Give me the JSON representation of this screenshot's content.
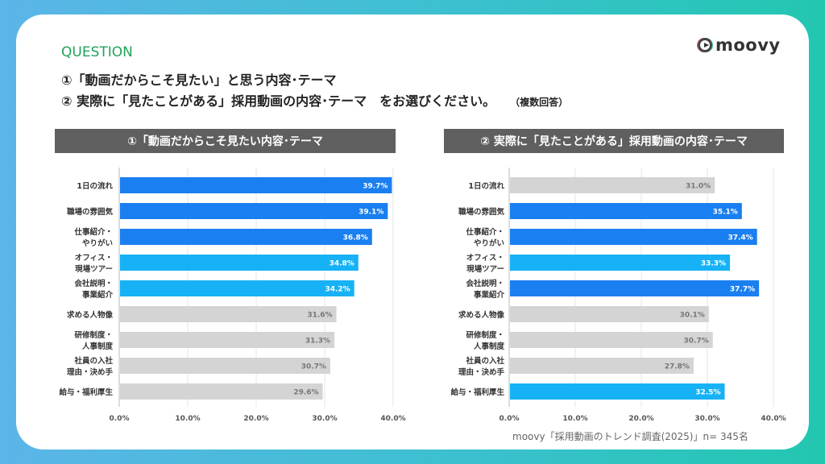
{
  "header": {
    "question_label": "QUESTION",
    "line1": "①「動画だからこそ見たい」と思う内容･テーマ",
    "line2": "② 実際に「見たことがある」採用動画の内容･テーマ　をお選びください。",
    "note": "（複数回答）",
    "logo": "moovy"
  },
  "colors": {
    "dark_blue": "#1a7ff0",
    "light_blue": "#16b2f5",
    "gray": "#d4d4d4"
  },
  "source": "moovy「採用動画のトレンド調査(2025)」n= 345名",
  "chart_data": [
    {
      "type": "bar",
      "orientation": "horizontal",
      "title": "①「動画だからこそ見たい内容･テーマ",
      "categories": [
        [
          "1日の流れ"
        ],
        [
          "職場の雰囲気"
        ],
        [
          "仕事紹介・",
          "やりがい"
        ],
        [
          "オフィス・",
          "現場ツアー"
        ],
        [
          "会社説明・",
          "事業紹介"
        ],
        [
          "求める人物像"
        ],
        [
          "研修制度・",
          "人事制度"
        ],
        [
          "社員の入社",
          "理由・決め手"
        ],
        [
          "給与・福利厚生"
        ]
      ],
      "values": [
        39.7,
        39.1,
        36.8,
        34.8,
        34.2,
        31.6,
        31.3,
        30.7,
        29.6
      ],
      "bar_colors": [
        "dark_blue",
        "dark_blue",
        "dark_blue",
        "light_blue",
        "light_blue",
        "gray",
        "gray",
        "gray",
        "gray"
      ],
      "xlim": [
        0,
        40
      ],
      "ticks": [
        "0.0%",
        "10.0%",
        "20.0%",
        "30.0%",
        "40.0%"
      ],
      "grid": true
    },
    {
      "type": "bar",
      "orientation": "horizontal",
      "title": "② 実際に「見たことがある」採用動画の内容･テーマ",
      "categories": [
        [
          "1日の流れ"
        ],
        [
          "職場の雰囲気"
        ],
        [
          "仕事紹介・",
          "やりがい"
        ],
        [
          "オフィス・",
          "現場ツアー"
        ],
        [
          "会社説明・",
          "事業紹介"
        ],
        [
          "求める人物像"
        ],
        [
          "研修制度・",
          "人事制度"
        ],
        [
          "社員の入社",
          "理由・決め手"
        ],
        [
          "給与・福利厚生"
        ]
      ],
      "values": [
        31.0,
        35.1,
        37.4,
        33.3,
        37.7,
        30.1,
        30.7,
        27.8,
        32.5
      ],
      "bar_colors": [
        "gray",
        "dark_blue",
        "dark_blue",
        "light_blue",
        "dark_blue",
        "gray",
        "gray",
        "gray",
        "light_blue"
      ],
      "xlim": [
        0,
        40
      ],
      "ticks": [
        "0.0%",
        "10.0%",
        "20.0%",
        "30.0%",
        "40.0%"
      ],
      "grid": true
    }
  ]
}
